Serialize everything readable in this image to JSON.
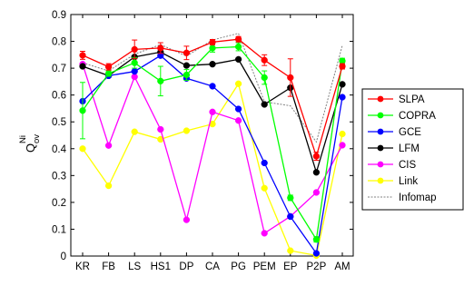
{
  "chart_data": {
    "type": "line",
    "categories": [
      "KR",
      "FB",
      "LS",
      "HS1",
      "DP",
      "CA",
      "PG",
      "PEM",
      "EP",
      "P2P",
      "AM"
    ],
    "tick_labels": [
      "KR",
      "FB",
      "LS",
      "HS1",
      "DP",
      "CA",
      "PG",
      "PEM",
      "EP",
      "P2P",
      "AM"
    ],
    "ylabel": {
      "base": "Q",
      "sub": "ov",
      "sup": "Ni"
    },
    "ylim": [
      0,
      0.9
    ],
    "yticks": [
      "0",
      "0.1",
      "0.2",
      "0.3",
      "0.4",
      "0.5",
      "0.6",
      "0.7",
      "0.8",
      "0.9"
    ],
    "grid": false,
    "legend_position": "right",
    "series": [
      {
        "name": "SLPA",
        "color": "#ff0000",
        "marker": "circle",
        "dashed": false,
        "values": [
          0.748,
          0.705,
          0.77,
          0.775,
          0.757,
          0.797,
          0.808,
          0.73,
          0.665,
          0.372,
          0.707
        ],
        "errors": [
          0.015,
          0.012,
          0.035,
          0.02,
          0.025,
          0.01,
          0.01,
          0.02,
          0.07,
          0.015,
          0.01
        ]
      },
      {
        "name": "COPRA",
        "color": "#00ff00",
        "marker": "circle",
        "dashed": false,
        "values": [
          0.542,
          0.68,
          0.72,
          0.652,
          0.675,
          0.775,
          0.78,
          0.665,
          0.217,
          0.062,
          0.727
        ],
        "errors": [
          0.105,
          0.01,
          0.02,
          0.055,
          0.02,
          0.015,
          0.015,
          0.025,
          0.01,
          0.01,
          0.01
        ]
      },
      {
        "name": "GCE",
        "color": "#0000ff",
        "marker": "circle",
        "dashed": false,
        "values": [
          0.577,
          0.672,
          0.688,
          0.747,
          0.662,
          0.633,
          0.548,
          0.347,
          0.147,
          0.01,
          0.592
        ],
        "errors": [
          0,
          0,
          0,
          0,
          0,
          0,
          0,
          0,
          0,
          0,
          0
        ]
      },
      {
        "name": "LFM",
        "color": "#000000",
        "marker": "circle",
        "dashed": false,
        "values": [
          0.707,
          0.672,
          0.742,
          0.76,
          0.71,
          0.715,
          0.733,
          0.565,
          0.627,
          0.312,
          0.64
        ],
        "errors": [
          0,
          0,
          0,
          0,
          0,
          0,
          0,
          0,
          0,
          0,
          0
        ]
      },
      {
        "name": "CIS",
        "color": "#ff00ff",
        "marker": "circle",
        "dashed": false,
        "values": [
          0.715,
          0.412,
          0.668,
          0.472,
          0.135,
          0.537,
          0.505,
          0.085,
          0.148,
          0.237,
          0.413
        ],
        "errors": [
          0,
          0,
          0,
          0,
          0,
          0,
          0,
          0,
          0,
          0,
          0
        ]
      },
      {
        "name": "Link",
        "color": "#ffff00",
        "marker": "circle",
        "dashed": false,
        "values": [
          0.4,
          0.262,
          0.463,
          0.435,
          0.467,
          0.492,
          0.642,
          0.253,
          0.02,
          0.002,
          0.455
        ],
        "errors": [
          0,
          0,
          0,
          0,
          0,
          0,
          0,
          0,
          0,
          0,
          0
        ]
      },
      {
        "name": "Infomap",
        "color": "#808080",
        "marker": "none",
        "dashed": true,
        "values": [
          0.72,
          0.69,
          0.752,
          0.788,
          0.745,
          0.805,
          0.83,
          0.575,
          0.56,
          0.425,
          0.785
        ],
        "errors": [
          0,
          0,
          0,
          0,
          0,
          0,
          0,
          0,
          0,
          0,
          0
        ]
      }
    ]
  }
}
